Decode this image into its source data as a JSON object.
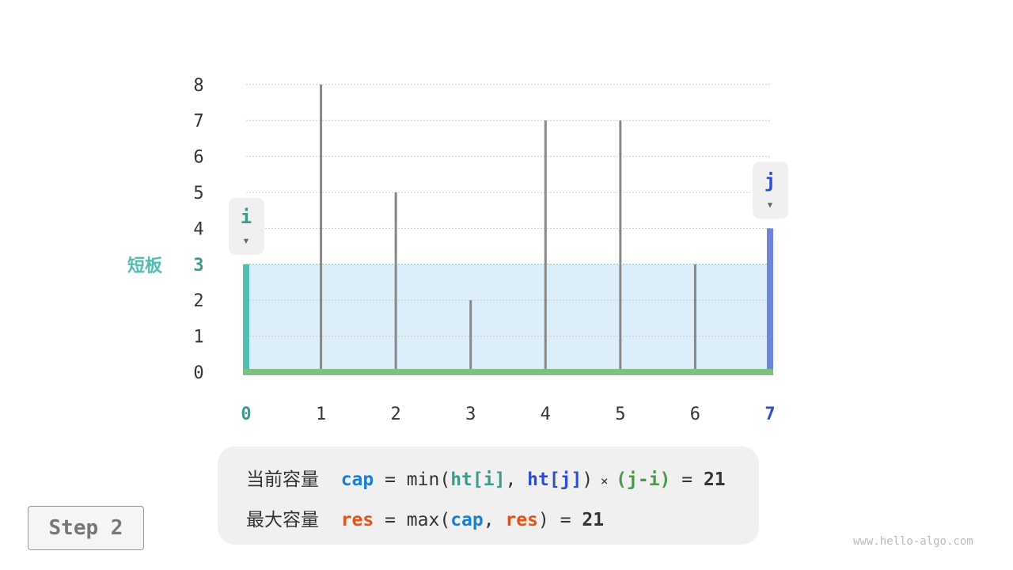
{
  "heights": [
    3,
    8,
    5,
    2,
    7,
    7,
    3,
    4
  ],
  "y_ticks": [
    "0",
    "1",
    "2",
    "3",
    "4",
    "5",
    "6",
    "7",
    "8"
  ],
  "x_ticks": [
    "0",
    "1",
    "2",
    "3",
    "4",
    "5",
    "6",
    "7"
  ],
  "i_index": 0,
  "j_index": 7,
  "pointer_i": "i",
  "pointer_j": "j",
  "arrow": "▾",
  "short_board_label": "短板",
  "water_level": 3,
  "colors": {
    "i": "#3d9b8c",
    "j": "#2b4fce",
    "water": "#dbeefa",
    "bar": "#888888",
    "base": "#7fbf7f",
    "i_bar": "#52bdb0",
    "j_bar": "#6e85de",
    "cap": "#1a7fcf",
    "res": "#e65117",
    "ji": "#4a9a4a"
  },
  "formula": {
    "line1": {
      "label": "当前容量",
      "cap": "cap",
      "eq1": " = min(",
      "hti": "ht[i]",
      "comma": ", ",
      "htj": "ht[j]",
      "close": ")",
      "times": " × ",
      "ji": "(j-i)",
      "eq2": " = ",
      "value": "21"
    },
    "line2": {
      "label": "最大容量",
      "res": "res",
      "eq1": " = max(",
      "cap": "cap",
      "comma": ", ",
      "res2": "res",
      "close": ")",
      "eq2": " = ",
      "value": "21"
    }
  },
  "step_label": "Step 2",
  "watermark": "www.hello-algo.com"
}
